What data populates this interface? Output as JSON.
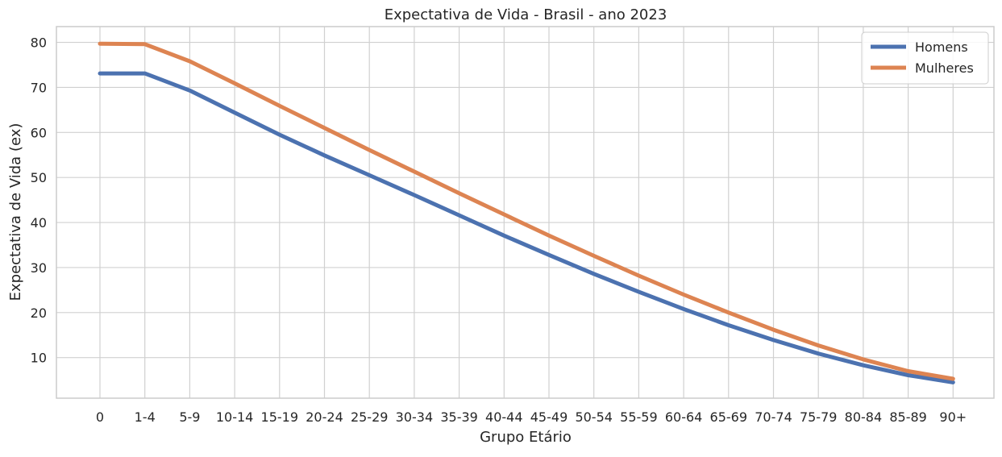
{
  "chart_data": {
    "type": "line",
    "title": "Expectativa de Vida - Brasil - ano 2023",
    "xlabel": "Grupo Etário",
    "ylabel": "Expectativa de Vida (ex)",
    "categories": [
      "0",
      "1-4",
      "5-9",
      "10-14",
      "15-19",
      "20-24",
      "25-29",
      "30-34",
      "35-39",
      "40-44",
      "45-49",
      "50-54",
      "55-59",
      "60-64",
      "65-69",
      "70-74",
      "75-79",
      "80-84",
      "85-89",
      "90+"
    ],
    "yticks": [
      10,
      20,
      30,
      40,
      50,
      60,
      70,
      80
    ],
    "ylim": [
      1,
      83.5
    ],
    "grid": true,
    "legend_position": "top-right",
    "series": [
      {
        "name": "Homens",
        "color": "#4c72b0",
        "values": [
          73.1,
          73.1,
          69.3,
          64.4,
          59.5,
          54.9,
          50.5,
          46.1,
          41.6,
          37.1,
          32.8,
          28.6,
          24.6,
          20.8,
          17.2,
          13.9,
          10.9,
          8.3,
          6.1,
          4.5
        ]
      },
      {
        "name": "Mulheres",
        "color": "#dd8452",
        "values": [
          79.7,
          79.6,
          75.8,
          70.9,
          65.9,
          61.0,
          56.1,
          51.3,
          46.5,
          41.8,
          37.1,
          32.6,
          28.2,
          24.0,
          20.0,
          16.2,
          12.7,
          9.6,
          7.0,
          5.3
        ]
      }
    ]
  }
}
